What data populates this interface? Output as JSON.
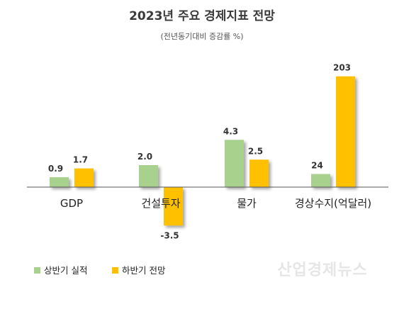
{
  "chart_data": {
    "type": "bar",
    "title": "2023년 주요 경제지표 전망",
    "subtitle": "(전년동기대비 증감률 %)",
    "categories": [
      "GDP",
      "건설투자",
      "물가",
      "경상수지(억달러)"
    ],
    "series": [
      {
        "name": "상반기 실적",
        "values": [
          0.9,
          2.0,
          4.3,
          24
        ],
        "labels": [
          "0.9",
          "2.0",
          "4.3",
          "24"
        ]
      },
      {
        "name": "하반기 전망",
        "values": [
          1.7,
          -3.5,
          2.5,
          203
        ],
        "labels": [
          "1.7",
          "-3.5",
          "2.5",
          "203"
        ]
      }
    ],
    "legend_position": "bottom-left",
    "grid": false,
    "colors": {
      "first_half": "#a9d18e",
      "second_half": "#ffc000",
      "axis": "#555555"
    }
  },
  "watermark": "산업경제뉴스"
}
